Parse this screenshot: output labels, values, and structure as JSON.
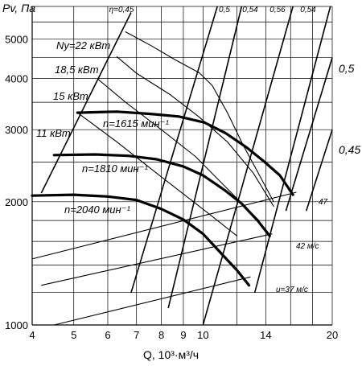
{
  "chart_data": {
    "type": "line",
    "ylabel": "Pv, Па",
    "xlabel": "Q, 10³·м³/ч",
    "x_scale": "log",
    "y_scale": "log",
    "xlim": [
      4,
      20
    ],
    "ylim": [
      1000,
      6000
    ],
    "x_ticks": [
      {
        "label": "4",
        "value": 4
      },
      {
        "label": "5",
        "value": 5
      },
      {
        "label": "6",
        "value": 6
      },
      {
        "label": "7",
        "value": 7
      },
      {
        "label": "8",
        "value": 8
      },
      {
        "label": "9",
        "value": 9
      },
      {
        "label": "10",
        "value": 10
      },
      {
        "label": "14",
        "value": 14
      },
      {
        "label": "20",
        "value": 20
      }
    ],
    "x_gridlines": [
      4,
      5,
      6,
      7,
      8,
      9,
      10,
      12,
      14,
      16,
      18,
      20
    ],
    "y_ticks": [
      {
        "label": "1000",
        "value": 1000
      },
      {
        "label": "2000",
        "value": 2000
      },
      {
        "label": "3000",
        "value": 3000
      },
      {
        "label": "4000",
        "value": 4000
      },
      {
        "label": "5000",
        "value": 5000
      }
    ],
    "y_gridlines": [
      1000,
      1200,
      1400,
      1600,
      1800,
      2000,
      2500,
      3000,
      3500,
      4000,
      4500,
      5000,
      5500,
      6000
    ],
    "grid": true,
    "series": [
      {
        "name": "n=1615 мин⁻¹",
        "x": [
          4.0,
          5.0,
          6.0,
          7.0,
          8.0,
          9.0,
          10.0,
          11.0,
          12.0,
          12.8
        ],
        "y": [
          2070,
          2080,
          2060,
          2020,
          1920,
          1810,
          1670,
          1500,
          1360,
          1250
        ]
      },
      {
        "name": "n=1810 мин⁻¹",
        "x": [
          4.5,
          5.6,
          6.7,
          7.8,
          9.0,
          10.0,
          11.2,
          12.3,
          13.4,
          14.3
        ],
        "y": [
          2600,
          2610,
          2590,
          2540,
          2440,
          2320,
          2140,
          1980,
          1800,
          1650
        ]
      },
      {
        "name": "n=2040 мин⁻¹",
        "x": [
          5.1,
          6.3,
          7.5,
          8.8,
          10.1,
          11.3,
          12.6,
          13.8,
          15.1,
          16.2
        ],
        "y": [
          3300,
          3320,
          3280,
          3230,
          3120,
          2940,
          2720,
          2520,
          2320,
          2080
        ]
      }
    ],
    "power_curves": [
      {
        "label": "Ny=22 кВт",
        "x": [
          6.6,
          7.6,
          8.6,
          9.8,
          10.5,
          11.4,
          12.4,
          13.6,
          14.6
        ],
        "y": [
          5200,
          4800,
          4450,
          4130,
          3850,
          3300,
          2750,
          2300,
          2000
        ]
      },
      {
        "label": "18,5 кВт",
        "x": [
          6.3,
          7.0,
          8.4,
          9.8,
          11.4,
          13.1,
          14.6
        ],
        "y": [
          4520,
          4120,
          3650,
          3220,
          2800,
          2350,
          1950
        ]
      },
      {
        "label": "15 кВт",
        "x": [
          5.7,
          6.6,
          8.0,
          9.6,
          11.4,
          13.5
        ],
        "y": [
          3980,
          3500,
          3000,
          2580,
          2150,
          1800
        ]
      },
      {
        "label": "11 кВт",
        "x": [
          5.1,
          6.3,
          8.0,
          9.8,
          12.0
        ],
        "y": [
          3300,
          2800,
          2300,
          1950,
          1650
        ]
      }
    ],
    "efficiency_lines": [
      {
        "label": "η=0,45",
        "x": [
          4.2,
          6.8
        ],
        "y": [
          2100,
          5800
        ]
      },
      {
        "label": "0,5",
        "x": [
          6.8,
          10.8
        ],
        "y": [
          1200,
          6000
        ]
      },
      {
        "label": "0,54",
        "x": [
          8.3,
          12.3
        ],
        "y": [
          1100,
          6000
        ]
      },
      {
        "label": "0,56",
        "x": [
          10.0,
          16.2
        ],
        "y": [
          1000,
          6000
        ]
      },
      {
        "label": "0,54",
        "x": [
          13.2,
          19.8
        ],
        "y": [
          1200,
          6000
        ]
      },
      {
        "label": "0,5",
        "x": [
          15.6,
          20.0
        ],
        "y": [
          1900,
          4500
        ]
      },
      {
        "label": "0,45",
        "x": [
          17.4,
          20.0
        ],
        "y": [
          1900,
          3000
        ]
      }
    ],
    "velocity_lines": [
      {
        "label": "u=37 м/с",
        "x": [
          4.5,
          12.9
        ],
        "y": [
          1000,
          1310
        ]
      },
      {
        "label": "42 м/с",
        "x": [
          4.2,
          14.5
        ],
        "y": [
          1250,
          1670
        ]
      },
      {
        "label": "47",
        "x": [
          4.0,
          16.5
        ],
        "y": [
          1450,
          2110
        ]
      }
    ]
  }
}
